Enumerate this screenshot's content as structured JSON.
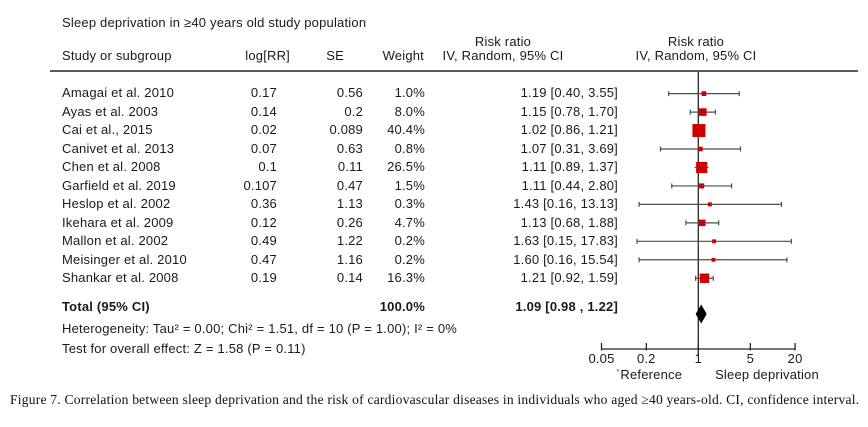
{
  "title": "Sleep deprivation in ≥40 years old study population",
  "table": {
    "col_study": "Study or subgroup",
    "col_logrr": "log[RR]",
    "col_se": "SE",
    "col_weight": "Weight",
    "col_rr_line1": "Risk ratio",
    "col_rr_line2": "IV, Random, 95% CI",
    "plot_col_line1": "Risk ratio",
    "plot_col_line2": "IV, Random, 95% CI"
  },
  "chart_data": {
    "type": "forest",
    "x_scale": "log",
    "x_axis_range": [
      0.05,
      20
    ],
    "axis_ticks": [
      "0.05",
      "0.2",
      "1",
      "5",
      "20"
    ],
    "axis_left_label": "`Reference",
    "axis_right_label": "Sleep deprivation",
    "marker_color": "#cc0000",
    "ci_line_color": "#4d4d4d",
    "axis_color": "#262626",
    "studies": [
      {
        "name": "Amagai et al. 2010",
        "log_rr": "0.17",
        "se": "0.56",
        "weight": "1.0%",
        "weight_value": 1.0,
        "rr": 1.19,
        "ci_low": 0.4,
        "ci_high": 3.55,
        "rr_text": "1.19 [0.40, 3.55]"
      },
      {
        "name": "Ayas et al. 2003",
        "log_rr": "0.14",
        "se": "0.2",
        "weight": "8.0%",
        "weight_value": 8.0,
        "rr": 1.15,
        "ci_low": 0.78,
        "ci_high": 1.7,
        "rr_text": "1.15 [0.78, 1.70]"
      },
      {
        "name": "Cai et al., 2015",
        "log_rr": "0.02",
        "se": "0.089",
        "weight": "40.4%",
        "weight_value": 40.4,
        "rr": 1.02,
        "ci_low": 0.86,
        "ci_high": 1.21,
        "rr_text": "1.02 [0.86, 1.21]"
      },
      {
        "name": "Canivet et al. 2013",
        "log_rr": "0.07",
        "se": "0.63",
        "weight": "0.8%",
        "weight_value": 0.8,
        "rr": 1.07,
        "ci_low": 0.31,
        "ci_high": 3.69,
        "rr_text": "1.07 [0.31, 3.69]"
      },
      {
        "name": "Chen et al. 2008",
        "log_rr": "0.1",
        "se": "0.11",
        "weight": "26.5%",
        "weight_value": 26.5,
        "rr": 1.11,
        "ci_low": 0.89,
        "ci_high": 1.37,
        "rr_text": "1.11 [0.89, 1.37]"
      },
      {
        "name": "Garfield et al. 2019",
        "log_rr": "0.107",
        "se": "0.47",
        "weight": "1.5%",
        "weight_value": 1.5,
        "rr": 1.11,
        "ci_low": 0.44,
        "ci_high": 2.8,
        "rr_text": "1.11 [0.44, 2.80]"
      },
      {
        "name": "Heslop et al. 2002",
        "log_rr": "0.36",
        "se": "1.13",
        "weight": "0.3%",
        "weight_value": 0.3,
        "rr": 1.43,
        "ci_low": 0.16,
        "ci_high": 13.13,
        "rr_text": "1.43 [0.16, 13.13]"
      },
      {
        "name": "Ikehara et al. 2009",
        "log_rr": "0.12",
        "se": "0.26",
        "weight": "4.7%",
        "weight_value": 4.7,
        "rr": 1.13,
        "ci_low": 0.68,
        "ci_high": 1.88,
        "rr_text": "1.13 [0.68, 1.88]"
      },
      {
        "name": "Mallon et al. 2002",
        "log_rr": "0.49",
        "se": "1.22",
        "weight": "0.2%",
        "weight_value": 0.2,
        "rr": 1.63,
        "ci_low": 0.15,
        "ci_high": 17.83,
        "rr_text": "1.63 [0.15, 17.83]"
      },
      {
        "name": "Meisinger et al. 2010",
        "log_rr": "0.47",
        "se": "1.16",
        "weight": "0.2%",
        "weight_value": 0.2,
        "rr": 1.6,
        "ci_low": 0.16,
        "ci_high": 15.54,
        "rr_text": "1.60 [0.16, 15.54]"
      },
      {
        "name": "Shankar et al. 2008",
        "log_rr": "0.19",
        "se": "0.14",
        "weight": "16.3%",
        "weight_value": 16.3,
        "rr": 1.21,
        "ci_low": 0.92,
        "ci_high": 1.59,
        "rr_text": "1.21 [0.92, 1.59]"
      }
    ],
    "total": {
      "label": "Total (95% CI)",
      "weight": "100.0%",
      "rr": 1.09,
      "ci_low": 0.98,
      "ci_high": 1.22,
      "rr_text": "1.09 [0.98 , 1.22]"
    }
  },
  "footnotes": {
    "heterogeneity": "Heterogeneity: Tau² = 0.00; Chi² = 1.51, df = 10 (P = 1.00); I² = 0%",
    "overall_effect": "Test for overall effect: Z = 1.58 (P = 0.11)"
  },
  "caption": "Figure 7. Correlation between sleep deprivation and the risk of cardiovascular diseases in individuals who aged ≥40 years-old. CI, confidence interval."
}
